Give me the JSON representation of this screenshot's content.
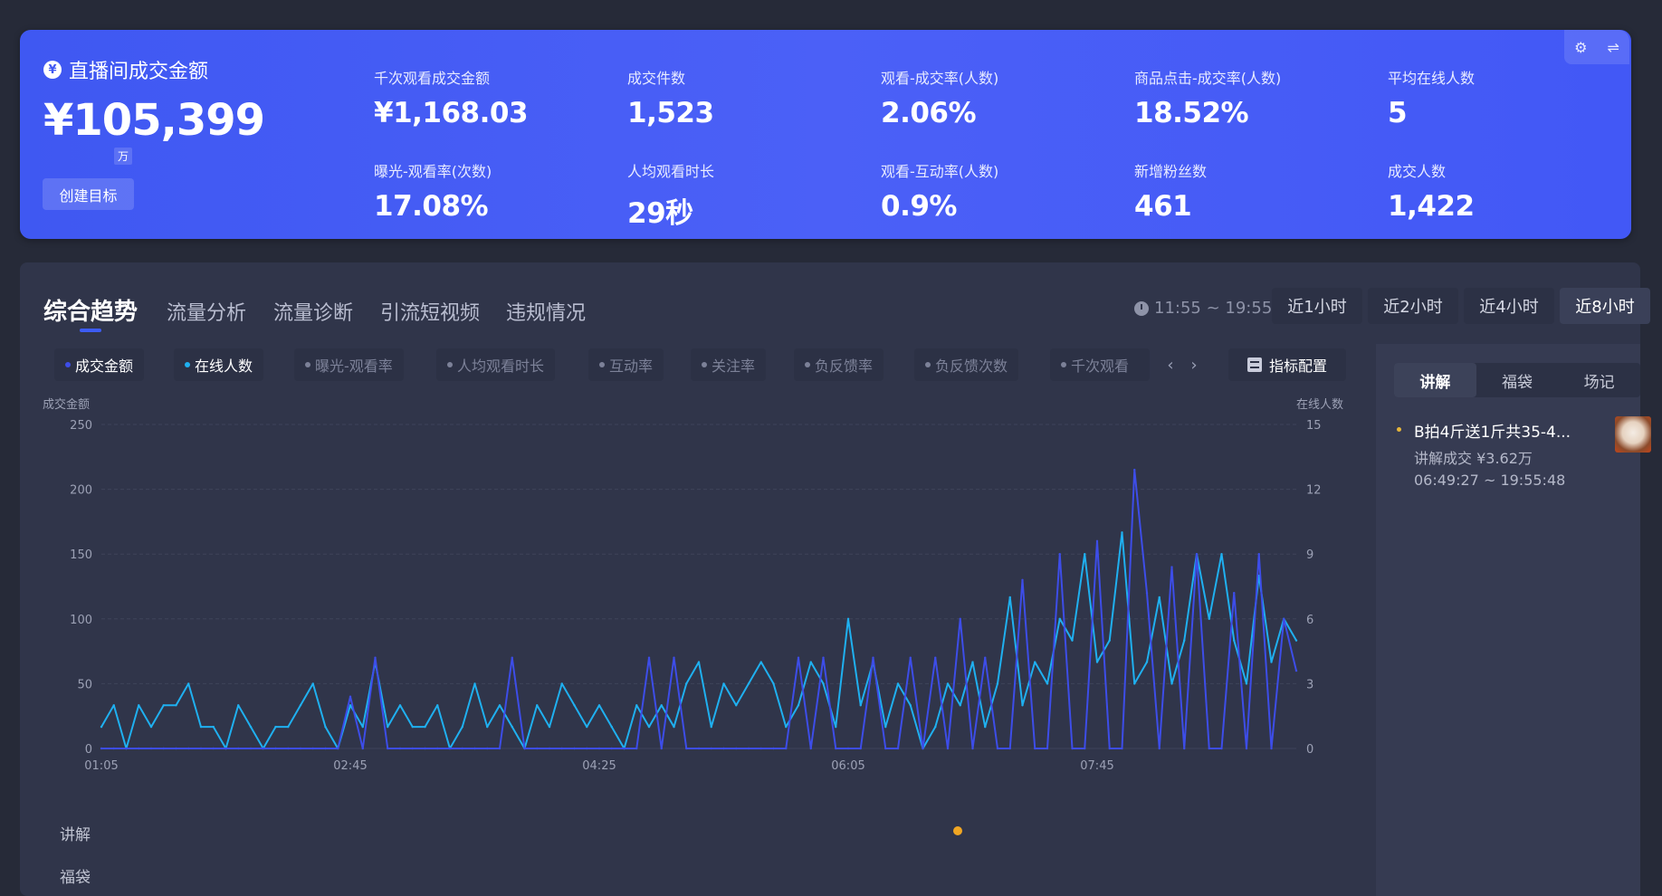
{
  "summary": {
    "hero_label": "直播间成交金额",
    "hero_value": "¥105,399",
    "hero_unit": "万",
    "create_goal_label": "创建目标",
    "stats": [
      {
        "label": "千次观看成交金额",
        "value": "¥1,168.03"
      },
      {
        "label": "成交件数",
        "value": "1,523"
      },
      {
        "label": "观看-成交率(人数)",
        "value": "2.06%"
      },
      {
        "label": "商品点击-成交率(人数)",
        "value": "18.52%"
      },
      {
        "label": "平均在线人数",
        "value": "5"
      },
      {
        "label": "曝光-观看率(次数)",
        "value": "17.08%"
      },
      {
        "label": "人均观看时长",
        "value": "29秒"
      },
      {
        "label": "观看-互动率(人数)",
        "value": "0.9%"
      },
      {
        "label": "新增粉丝数",
        "value": "461"
      },
      {
        "label": "成交人数",
        "value": "1,422"
      }
    ],
    "accent": "#4158f3"
  },
  "tabs": [
    {
      "label": "综合趋势",
      "active": true
    },
    {
      "label": "流量分析"
    },
    {
      "label": "流量诊断"
    },
    {
      "label": "引流短视频"
    },
    {
      "label": "违规情况"
    }
  ],
  "time_range": {
    "text": "11:55 ~ 19:55",
    "options": [
      "近1小时",
      "近2小时",
      "近4小时",
      "近8小时"
    ],
    "selected": "近8小时"
  },
  "metrics": [
    {
      "label": "成交金额",
      "on": true,
      "color": "#3d4de8"
    },
    {
      "label": "在线人数",
      "on": true,
      "color": "#1fb0f0"
    },
    {
      "label": "曝光-观看率"
    },
    {
      "label": "人均观看时长"
    },
    {
      "label": "互动率"
    },
    {
      "label": "关注率"
    },
    {
      "label": "负反馈率"
    },
    {
      "label": "负反馈次数"
    },
    {
      "label": "千次观看"
    }
  ],
  "metric_config_label": "指标配置",
  "side": {
    "tabs": [
      "讲解",
      "福袋",
      "场记"
    ],
    "selected": "讲解",
    "item": {
      "title": "B拍4斤送1斤共35-4...",
      "sales": "讲解成交 ¥3.62万",
      "time": "06:49:27 ~ 19:55:48"
    }
  },
  "timeline_rows": [
    "讲解",
    "福袋"
  ],
  "chart_data": {
    "type": "line",
    "ylabel_left": "成交金额",
    "ylabel_right": "在线人数",
    "ylim_left": [
      0,
      250
    ],
    "ylim_right": [
      0,
      15
    ],
    "yticks_left": [
      "0",
      "50",
      "100",
      "150",
      "200",
      "250"
    ],
    "yticks_right": [
      "0",
      "3",
      "6",
      "9",
      "12",
      "15"
    ],
    "xticks": [
      "01:05",
      "02:45",
      "04:25",
      "06:05",
      "07:45"
    ],
    "xlim": [
      "01:05",
      "09:05"
    ],
    "grid": true,
    "x": [
      "01:05",
      "01:10",
      "01:15",
      "01:20",
      "01:25",
      "01:30",
      "01:35",
      "01:40",
      "01:45",
      "01:50",
      "01:55",
      "02:00",
      "02:05",
      "02:10",
      "02:15",
      "02:20",
      "02:25",
      "02:30",
      "02:35",
      "02:40",
      "02:45",
      "02:50",
      "02:55",
      "03:00",
      "03:05",
      "03:10",
      "03:15",
      "03:20",
      "03:25",
      "03:30",
      "03:35",
      "03:40",
      "03:45",
      "03:50",
      "03:55",
      "04:00",
      "04:05",
      "04:10",
      "04:15",
      "04:20",
      "04:25",
      "04:30",
      "04:35",
      "04:40",
      "04:45",
      "04:50",
      "04:55",
      "05:00",
      "05:05",
      "05:10",
      "05:15",
      "05:20",
      "05:25",
      "05:30",
      "05:35",
      "05:40",
      "05:45",
      "05:50",
      "05:55",
      "06:00",
      "06:05",
      "06:10",
      "06:15",
      "06:20",
      "06:25",
      "06:30",
      "06:35",
      "06:40",
      "06:45",
      "06:50",
      "06:55",
      "07:00",
      "07:05",
      "07:10",
      "07:15",
      "07:20",
      "07:25",
      "07:30",
      "07:35",
      "07:40",
      "07:45",
      "07:50",
      "07:55",
      "08:00",
      "08:05",
      "08:10",
      "08:15",
      "08:20",
      "08:25",
      "08:30",
      "08:35",
      "08:40",
      "08:45",
      "08:50",
      "08:55",
      "09:00",
      "09:05"
    ],
    "series": [
      {
        "name": "成交金额",
        "axis": "left",
        "color": "#3d4de8",
        "values": [
          0,
          0,
          0,
          0,
          0,
          0,
          0,
          0,
          0,
          0,
          0,
          0,
          0,
          0,
          0,
          0,
          0,
          0,
          0,
          0,
          40,
          0,
          70,
          0,
          0,
          0,
          0,
          0,
          0,
          0,
          0,
          0,
          0,
          70,
          0,
          0,
          0,
          0,
          0,
          0,
          0,
          0,
          0,
          0,
          70,
          0,
          70,
          0,
          0,
          0,
          0,
          0,
          0,
          0,
          0,
          0,
          70,
          0,
          70,
          0,
          0,
          0,
          70,
          0,
          0,
          70,
          0,
          70,
          0,
          100,
          0,
          70,
          0,
          0,
          130,
          0,
          0,
          150,
          0,
          0,
          160,
          0,
          0,
          215,
          120,
          0,
          140,
          0,
          150,
          0,
          0,
          120,
          0,
          150,
          0,
          100,
          60
        ]
      },
      {
        "name": "在线人数",
        "axis": "right",
        "color": "#1fb0f0",
        "values": [
          1,
          2,
          0,
          2,
          1,
          2,
          2,
          3,
          1,
          1,
          0,
          2,
          1,
          0,
          1,
          1,
          2,
          3,
          1,
          0,
          2,
          1,
          4,
          1,
          2,
          1,
          1,
          2,
          0,
          1,
          3,
          1,
          2,
          1,
          0,
          2,
          1,
          3,
          2,
          1,
          2,
          1,
          0,
          2,
          1,
          2,
          1,
          3,
          4,
          1,
          3,
          2,
          3,
          4,
          3,
          1,
          2,
          4,
          3,
          1,
          6,
          2,
          4,
          1,
          3,
          2,
          0,
          1,
          3,
          2,
          4,
          1,
          3,
          7,
          2,
          4,
          3,
          6,
          5,
          9,
          4,
          5,
          10,
          3,
          4,
          7,
          3,
          5,
          9,
          6,
          9,
          5,
          3,
          8,
          4,
          6,
          5
        ]
      }
    ],
    "timeline_markers": [
      {
        "row": "讲解",
        "time": "06:49",
        "color": "#f0a623"
      }
    ]
  }
}
